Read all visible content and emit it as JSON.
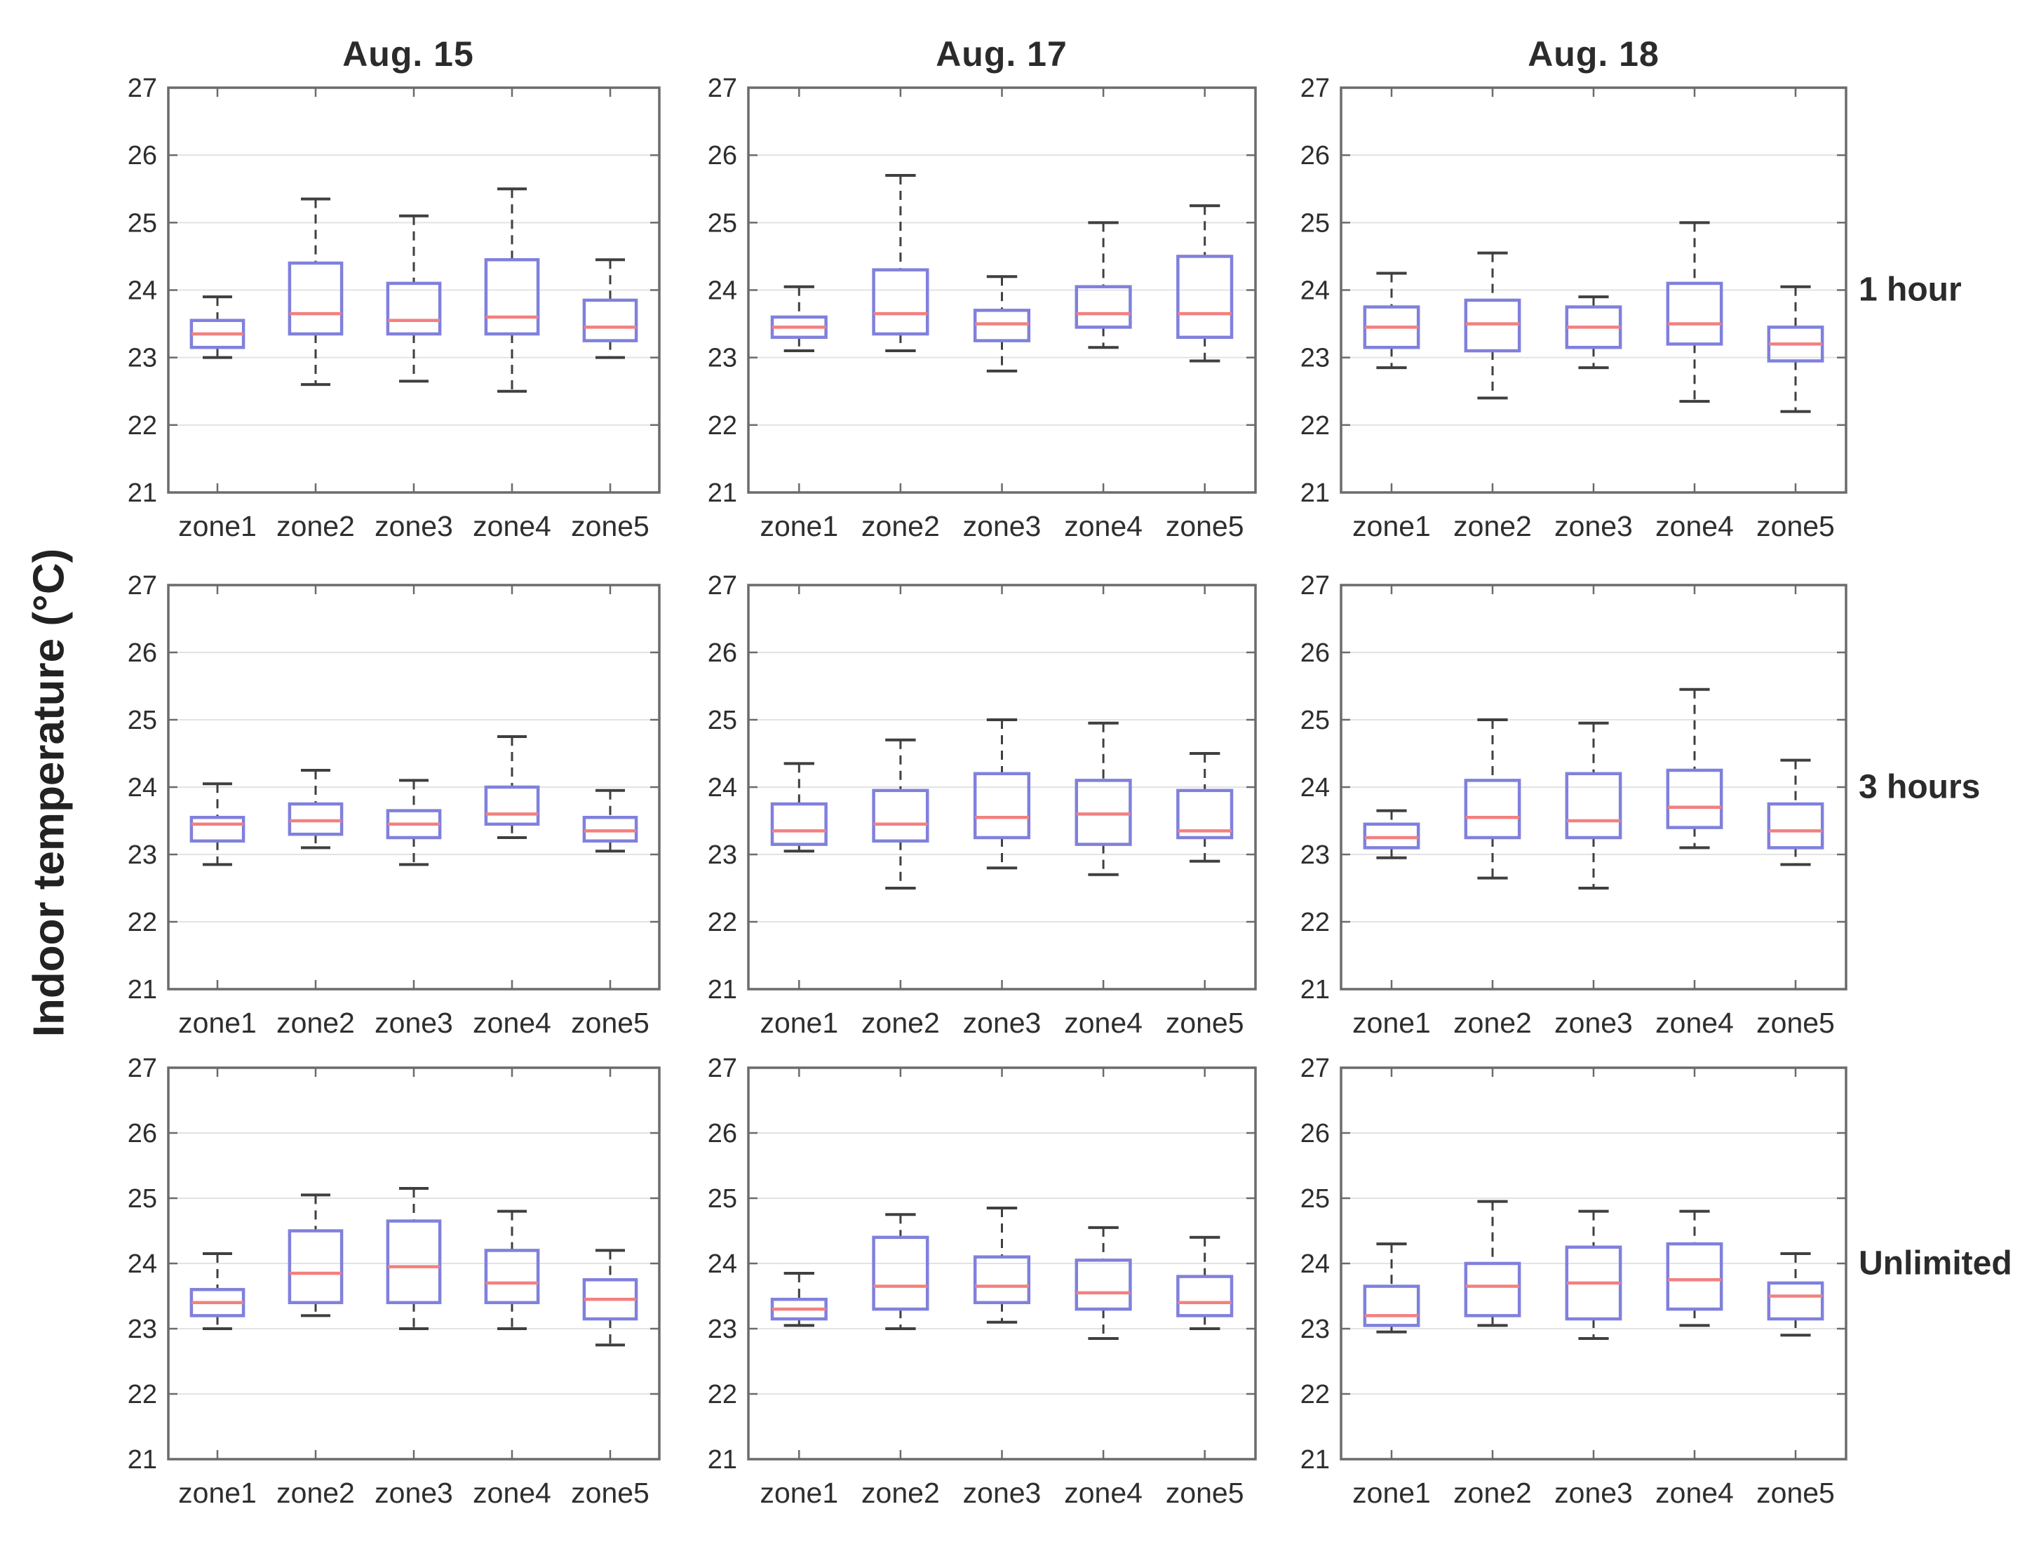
{
  "figure": {
    "ylabel": "Indoor temperature (°C)",
    "col_titles": [
      "Aug. 15",
      "Aug. 17",
      "Aug. 18"
    ],
    "row_labels": [
      "1 hour",
      "3 hours",
      "Unlimited"
    ]
  },
  "chart_data": {
    "type": "boxplot-grid",
    "title": "",
    "ylabel": "Indoor temperature (°C)",
    "xlabel": "",
    "grid": true,
    "legend": "none",
    "ylim": [
      21,
      27
    ],
    "yticks": [
      21,
      22,
      23,
      24,
      25,
      26,
      27
    ],
    "categories": [
      "zone1",
      "zone2",
      "zone3",
      "zone4",
      "zone5"
    ],
    "columns": [
      "Aug. 15",
      "Aug. 17",
      "Aug. 18"
    ],
    "rows": [
      "1 hour",
      "3 hours",
      "Unlimited"
    ],
    "value_order": [
      "whisker_low",
      "q1",
      "median",
      "q3",
      "whisker_high"
    ],
    "colors": {
      "box": "#8080dd",
      "median": "#f28080",
      "whisker": "#3f3f3f",
      "cap": "#3f3f3f",
      "gridline": "#e3e3e3",
      "axis": "#6b6b6b",
      "text": "#2e2e2e",
      "background": "#ffffff"
    },
    "panels": [
      {
        "row": "1 hour",
        "column": "Aug. 15",
        "values": [
          [
            23.0,
            23.15,
            23.35,
            23.55,
            23.9
          ],
          [
            22.6,
            23.35,
            23.65,
            24.4,
            25.35
          ],
          [
            22.65,
            23.35,
            23.55,
            24.1,
            25.1
          ],
          [
            22.5,
            23.35,
            23.6,
            24.45,
            25.5
          ],
          [
            23.0,
            23.25,
            23.45,
            23.85,
            24.45
          ]
        ]
      },
      {
        "row": "1 hour",
        "column": "Aug. 17",
        "values": [
          [
            23.1,
            23.3,
            23.45,
            23.6,
            24.05
          ],
          [
            23.1,
            23.35,
            23.65,
            24.3,
            25.7
          ],
          [
            22.8,
            23.25,
            23.5,
            23.7,
            24.2
          ],
          [
            23.15,
            23.45,
            23.65,
            24.05,
            25.0
          ],
          [
            22.95,
            23.3,
            23.65,
            24.5,
            25.25
          ]
        ]
      },
      {
        "row": "1 hour",
        "column": "Aug. 18",
        "values": [
          [
            22.85,
            23.15,
            23.45,
            23.75,
            24.25
          ],
          [
            22.4,
            23.1,
            23.5,
            23.85,
            24.55
          ],
          [
            22.85,
            23.15,
            23.45,
            23.75,
            23.9
          ],
          [
            22.35,
            23.2,
            23.5,
            24.1,
            25.0
          ],
          [
            22.2,
            22.95,
            23.2,
            23.45,
            24.05
          ]
        ]
      },
      {
        "row": "3 hours",
        "column": "Aug. 15",
        "values": [
          [
            22.85,
            23.2,
            23.45,
            23.55,
            24.05
          ],
          [
            23.1,
            23.3,
            23.5,
            23.75,
            24.25
          ],
          [
            22.85,
            23.25,
            23.45,
            23.65,
            24.1
          ],
          [
            23.25,
            23.45,
            23.6,
            24.0,
            24.75
          ],
          [
            23.05,
            23.2,
            23.35,
            23.55,
            23.95
          ]
        ]
      },
      {
        "row": "3 hours",
        "column": "Aug. 17",
        "values": [
          [
            23.05,
            23.15,
            23.35,
            23.75,
            24.35
          ],
          [
            22.5,
            23.2,
            23.45,
            23.95,
            24.7
          ],
          [
            22.8,
            23.25,
            23.55,
            24.2,
            25.0
          ],
          [
            22.7,
            23.15,
            23.6,
            24.1,
            24.95
          ],
          [
            22.9,
            23.25,
            23.35,
            23.95,
            24.5
          ]
        ]
      },
      {
        "row": "3 hours",
        "column": "Aug. 18",
        "values": [
          [
            22.95,
            23.1,
            23.25,
            23.45,
            23.65
          ],
          [
            22.65,
            23.25,
            23.55,
            24.1,
            25.0
          ],
          [
            22.5,
            23.25,
            23.5,
            24.2,
            24.95
          ],
          [
            23.1,
            23.4,
            23.7,
            24.25,
            25.45
          ],
          [
            22.85,
            23.1,
            23.35,
            23.75,
            24.4
          ]
        ]
      },
      {
        "row": "Unlimited",
        "column": "Aug. 15",
        "values": [
          [
            23.0,
            23.2,
            23.4,
            23.6,
            24.15
          ],
          [
            23.2,
            23.4,
            23.85,
            24.5,
            25.05
          ],
          [
            23.0,
            23.4,
            23.95,
            24.65,
            25.15
          ],
          [
            23.0,
            23.4,
            23.7,
            24.2,
            24.8
          ],
          [
            22.75,
            23.15,
            23.45,
            23.75,
            24.2
          ]
        ]
      },
      {
        "row": "Unlimited",
        "column": "Aug. 17",
        "values": [
          [
            23.05,
            23.15,
            23.3,
            23.45,
            23.85
          ],
          [
            23.0,
            23.3,
            23.65,
            24.4,
            24.75
          ],
          [
            23.1,
            23.4,
            23.65,
            24.1,
            24.85
          ],
          [
            22.85,
            23.3,
            23.55,
            24.05,
            24.55
          ],
          [
            23.0,
            23.2,
            23.4,
            23.8,
            24.4
          ]
        ]
      },
      {
        "row": "Unlimited",
        "column": "Aug. 18",
        "values": [
          [
            22.95,
            23.05,
            23.2,
            23.65,
            24.3
          ],
          [
            23.05,
            23.2,
            23.65,
            24.0,
            24.95
          ],
          [
            22.85,
            23.15,
            23.7,
            24.25,
            24.8
          ],
          [
            23.05,
            23.3,
            23.75,
            24.3,
            24.8
          ],
          [
            22.9,
            23.15,
            23.5,
            23.7,
            24.15
          ]
        ]
      }
    ]
  }
}
